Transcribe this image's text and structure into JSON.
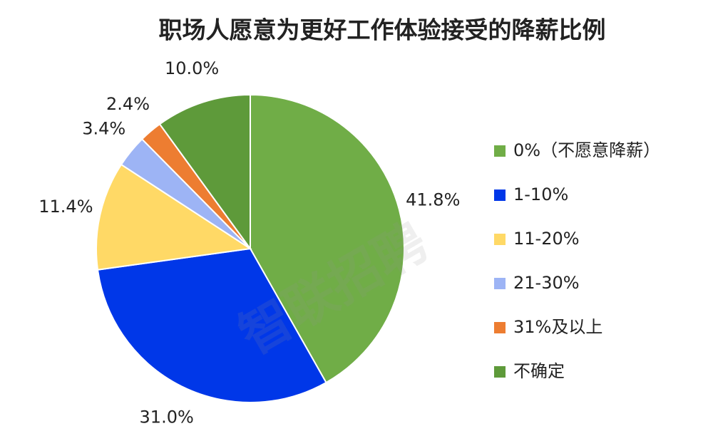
{
  "chart_data": {
    "type": "pie",
    "title": "职场人愿意为更好工作体验接受的降薪比例",
    "categories": [
      "0%（不愿意降薪）",
      "1-10%",
      "11-20%",
      "21-30%",
      "31%及以上",
      "不确定"
    ],
    "values": [
      41.8,
      31.0,
      11.4,
      3.4,
      2.4,
      10.0
    ],
    "value_labels": [
      "41.8%",
      "31.0%",
      "11.4%",
      "3.4%",
      "2.4%",
      "10.0%"
    ],
    "colors": [
      "#70ad47",
      "#0037e8",
      "#ffd966",
      "#9db4f5",
      "#ed7d31",
      "#5e9a3a"
    ],
    "legend": "right",
    "watermark": "智联招聘"
  }
}
